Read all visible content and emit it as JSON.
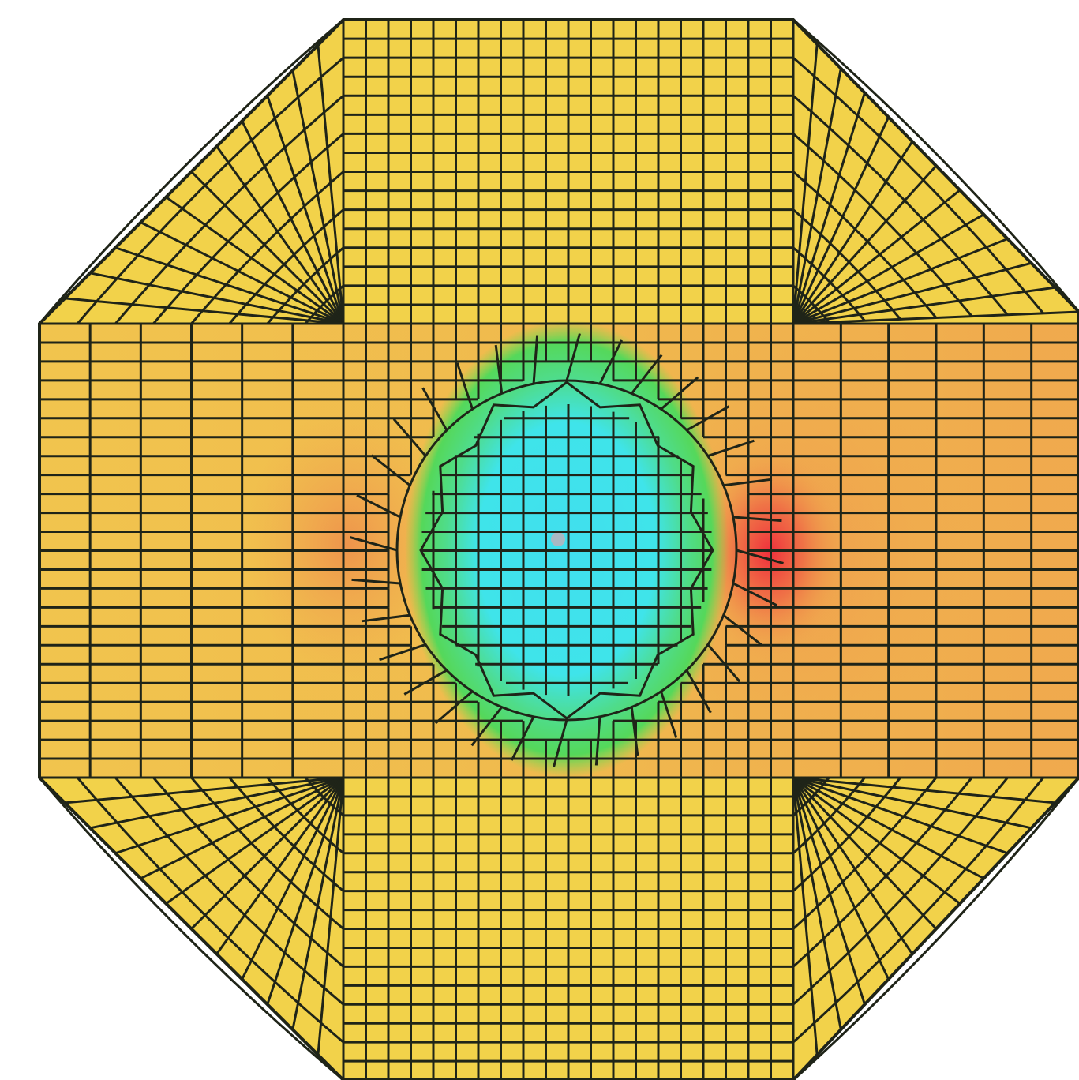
{
  "figure": {
    "kind": "finite-element mesh contour plot",
    "shape": "octagonal plate with central circular region",
    "colors": {
      "background": "#ffffff",
      "base": "#f2d24a",
      "warm": "#f0a84e",
      "hot": "#ef3b3b",
      "green": "#4fdc55",
      "cyan": "#3fe7ee",
      "mesh_line": "#1f2418"
    }
  }
}
